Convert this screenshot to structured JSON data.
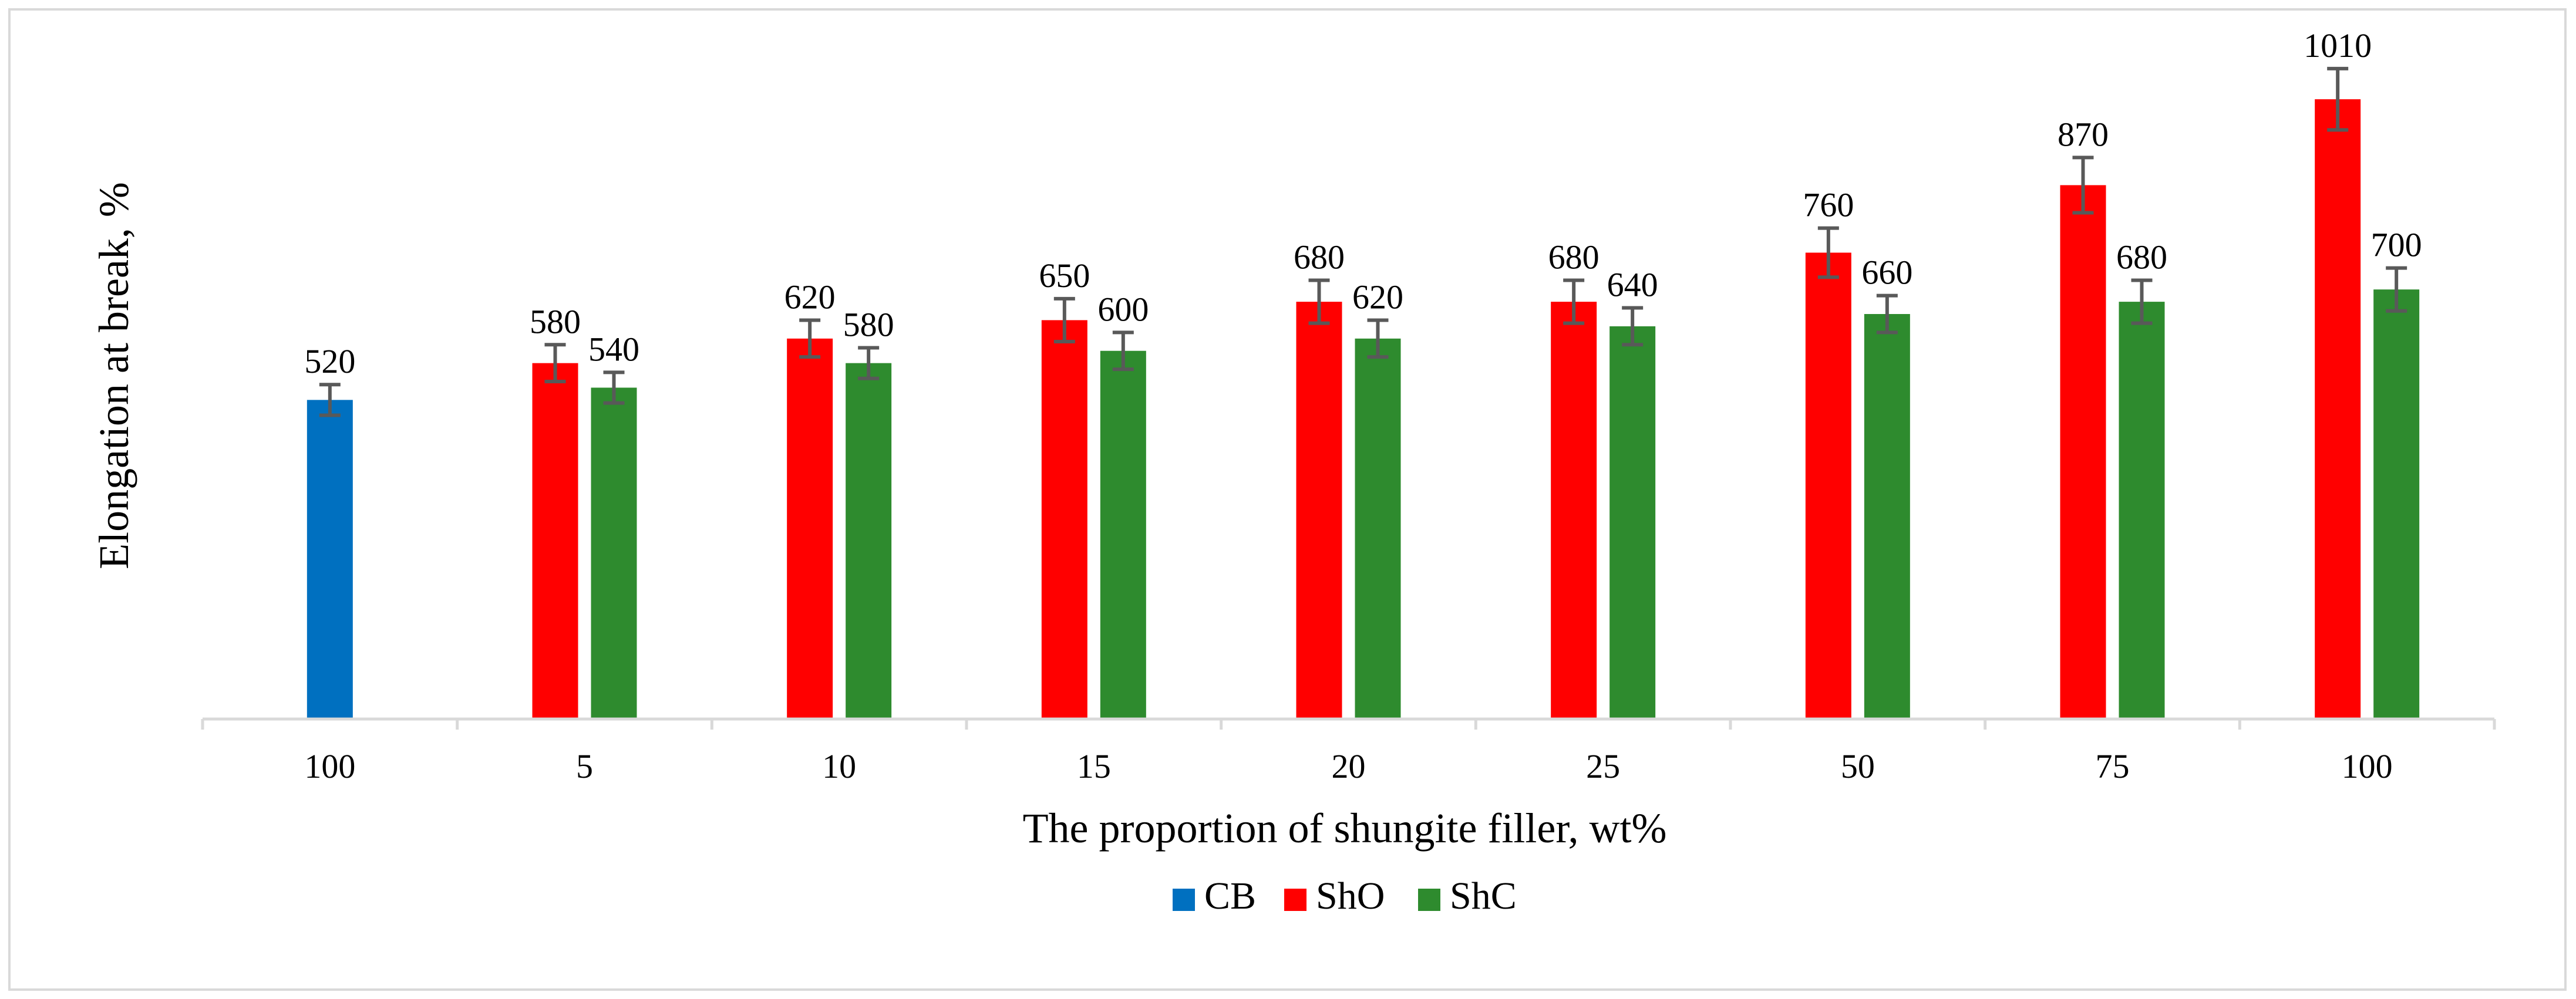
{
  "chart_data": {
    "type": "bar",
    "title": "",
    "xlabel": "The proportion of shungite filler, wt%",
    "ylabel": "Elongation at break, %",
    "categories": [
      "100",
      "5",
      "10",
      "15",
      "20",
      "25",
      "50",
      "75",
      "100"
    ],
    "ylim": [
      0,
      1100
    ],
    "grid": false,
    "legend_position": "bottom",
    "series": [
      {
        "name": "CB",
        "color": "#0070c0",
        "values": [
          520,
          null,
          null,
          null,
          null,
          null,
          null,
          null,
          null
        ]
      },
      {
        "name": "ShO",
        "color": "#ff0000",
        "values": [
          null,
          580,
          620,
          650,
          680,
          680,
          760,
          870,
          1010
        ]
      },
      {
        "name": "ShC",
        "color": "#2e8b2e",
        "values": [
          null,
          540,
          580,
          600,
          620,
          640,
          660,
          680,
          700
        ]
      }
    ],
    "error_bars": {
      "CB": [
        25,
        null,
        null,
        null,
        null,
        null,
        null,
        null,
        null
      ],
      "ShO": [
        null,
        30,
        30,
        35,
        35,
        35,
        40,
        45,
        50
      ],
      "ShC": [
        null,
        25,
        25,
        30,
        30,
        30,
        30,
        35,
        35
      ]
    },
    "error_bar_color": "#595959",
    "axis_color": "#d9d9d9"
  }
}
